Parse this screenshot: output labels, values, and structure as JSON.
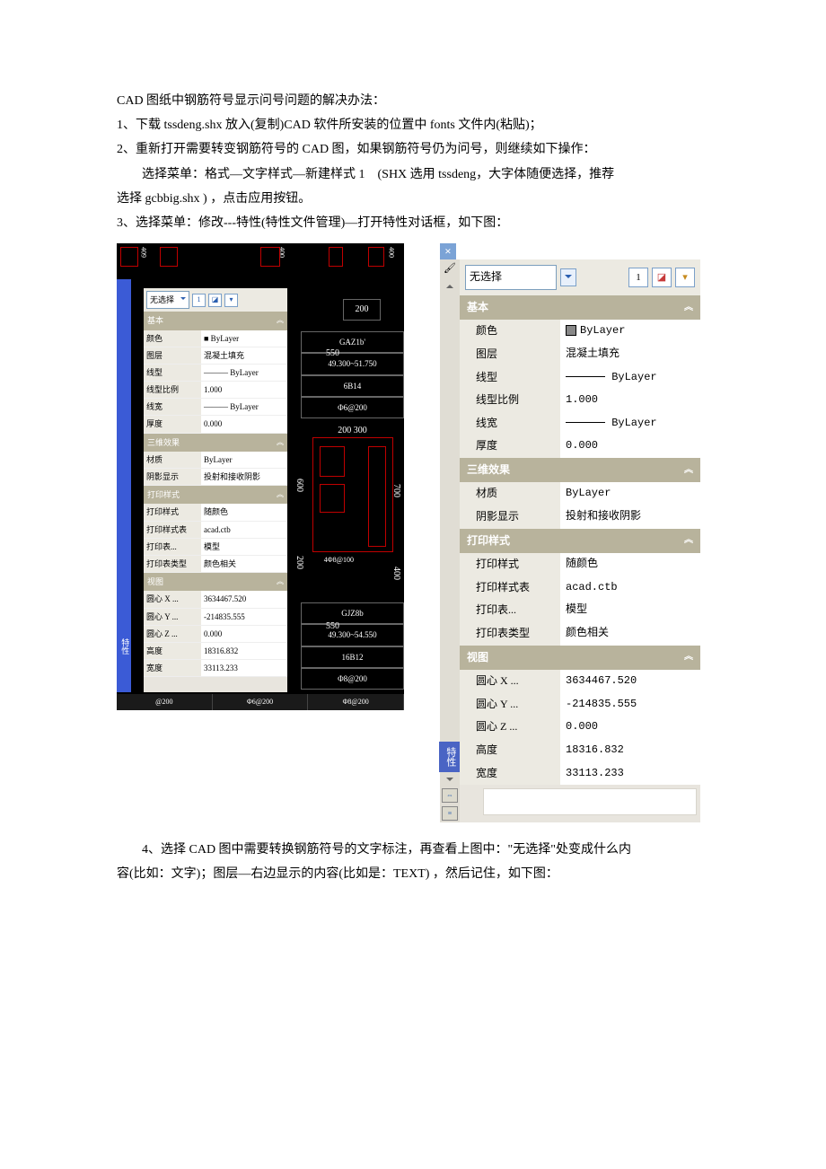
{
  "doc": {
    "p1": "CAD 图纸中钢筋符号显示问号问题的解决办法：",
    "p2": "1、下载 tssdeng.shx 放入(复制)CAD 软件所安装的位置中 fonts 文件内(粘贴)；",
    "p3": "2、重新打开需要转变钢筋符号的 CAD 图，如果钢筋符号仍为问号，则继续如下操作：",
    "p4": "选择菜单：格式—文字样式—新建样式 1　(SHX 选用 tssdeng，大字体随便选择，推荐",
    "p5": "选择 gcbbig.shx ) ，点击应用按钮。",
    "p6": "3、选择菜单：修改---特性(特性文件管理)—打开特性对话框，如下图：",
    "p7": "4、选择 CAD 图中需要转换钢筋符号的文字标注，再查看上图中：\"无选择\"处变成什么内",
    "p8": "容(比如：文字)；图层—右边显示的内容(比如是：TEXT) ，然后记住，如下图："
  },
  "left": {
    "dim_top_1": "409",
    "dim_top_2": "400",
    "dim_val_200": "200",
    "sel_label": "无选择",
    "section_basic": "基本",
    "rows_basic": [
      {
        "l": "颜色",
        "v": "■ ByLayer"
      },
      {
        "l": "图层",
        "v": "混凝土填充"
      },
      {
        "l": "线型",
        "v": "——— ByLayer"
      },
      {
        "l": "线型比例",
        "v": "1.000"
      },
      {
        "l": "线宽",
        "v": "——— ByLayer"
      },
      {
        "l": "厚度",
        "v": "0.000"
      }
    ],
    "section_3d": "三维效果",
    "rows_3d": [
      {
        "l": "材质",
        "v": "ByLayer"
      },
      {
        "l": "阴影显示",
        "v": "投射和接收阴影"
      }
    ],
    "section_plot": "打印样式",
    "rows_plot": [
      {
        "l": "打印样式",
        "v": "随颜色"
      },
      {
        "l": "打印样式表",
        "v": "acad.ctb"
      },
      {
        "l": "打印表...",
        "v": "模型"
      },
      {
        "l": "打印表类型",
        "v": "颜色相关"
      }
    ],
    "section_view": "视图",
    "rows_view": [
      {
        "l": "圆心 X ...",
        "v": "3634467.520"
      },
      {
        "l": "圆心 Y ...",
        "v": "-214835.555"
      },
      {
        "l": "圆心 Z ...",
        "v": "0.000"
      },
      {
        "l": "高度",
        "v": "18316.832"
      },
      {
        "l": "宽度",
        "v": "33113.233"
      }
    ],
    "col": {
      "r1": "GAZ1b'",
      "r2": "49.300~51.750",
      "r3": "6B14",
      "r4": "Φ6@200",
      "dims": "200   300",
      "r5": "4Φ8@100",
      "r6": "GJZ8b",
      "r7": "49.300~54.550",
      "r8": "16B12",
      "r9": "Φ8@200",
      "c550": "550"
    },
    "vert_600": "600",
    "vert_700": "700",
    "vert_200": "200",
    "vert_400b": "400",
    "bot_a": "@200",
    "bot_b": "Φ6@200",
    "bot_c": "Φ8@200",
    "side_label": "特性"
  },
  "right": {
    "sel_label": "无选择",
    "side_tab": "特性",
    "section_basic": "基本",
    "rows_basic": [
      {
        "l": "颜色",
        "v": "ByLayer",
        "swatch": true
      },
      {
        "l": "图层",
        "v": "混凝土填充"
      },
      {
        "l": "线型",
        "v": "ByLayer",
        "line": true
      },
      {
        "l": "线型比例",
        "v": "1.000"
      },
      {
        "l": "线宽",
        "v": "ByLayer",
        "line": true
      },
      {
        "l": "厚度",
        "v": "0.000"
      }
    ],
    "section_3d": "三维效果",
    "rows_3d": [
      {
        "l": "材质",
        "v": "ByLayer"
      },
      {
        "l": "阴影显示",
        "v": "投射和接收阴影"
      }
    ],
    "section_plot": "打印样式",
    "rows_plot": [
      {
        "l": "打印样式",
        "v": "随颜色"
      },
      {
        "l": "打印样式表",
        "v": "acad.ctb"
      },
      {
        "l": "打印表...",
        "v": "模型"
      },
      {
        "l": "打印表类型",
        "v": "颜色相关"
      }
    ],
    "section_view": "视图",
    "rows_view": [
      {
        "l": "圆心 X ...",
        "v": "3634467.520"
      },
      {
        "l": "圆心 Y ...",
        "v": "-214835.555"
      },
      {
        "l": "圆心 Z ...",
        "v": "0.000"
      },
      {
        "l": "高度",
        "v": "18316.832"
      },
      {
        "l": "宽度",
        "v": "33113.233"
      }
    ]
  }
}
